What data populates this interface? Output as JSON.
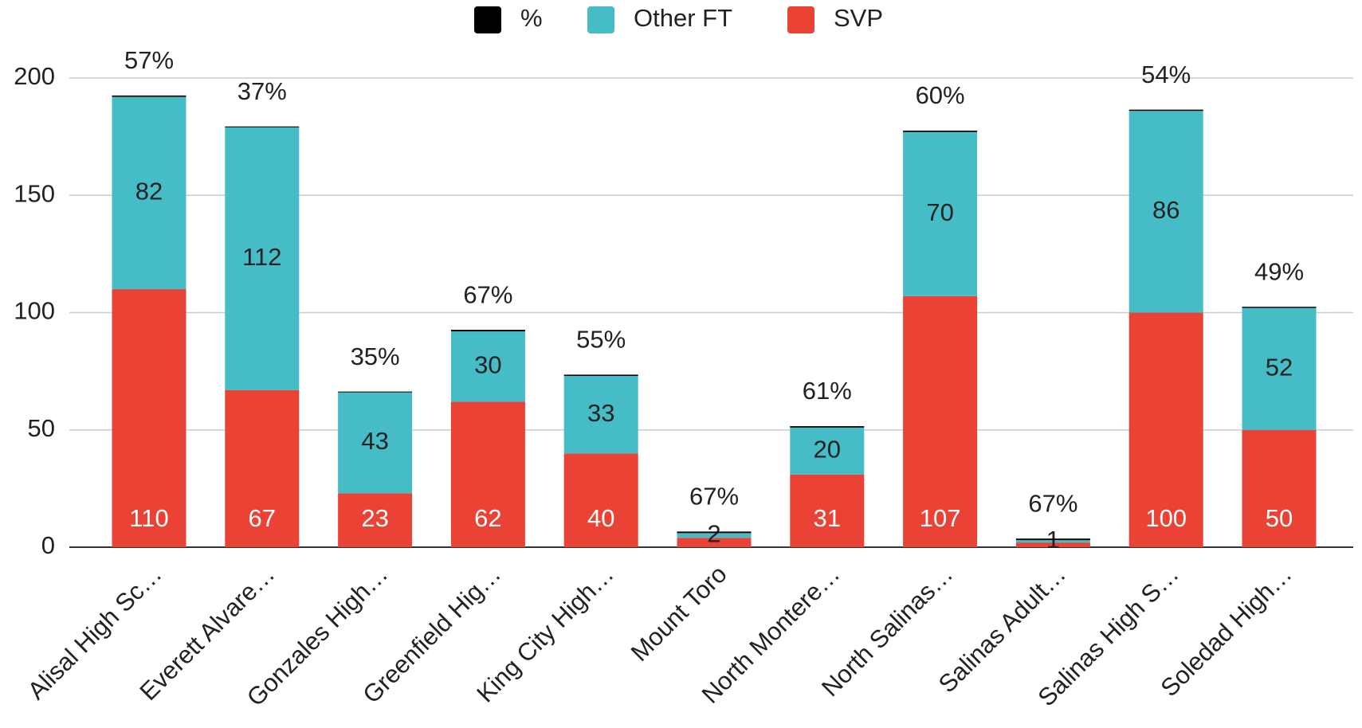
{
  "chart_data": {
    "type": "stacked_bar",
    "categories": [
      "Alisal High Sc…",
      "Everett Alvare…",
      "Gonzales High…",
      "Greenfield Hig…",
      "King City High…",
      "Mount Toro",
      "North Montere…",
      "North Salinas…",
      "Salinas Adult…",
      "Salinas High S…",
      "Soledad High…"
    ],
    "series": [
      {
        "name": "%",
        "color": "#000000",
        "values": [
          0.57,
          0.37,
          0.35,
          0.67,
          0.55,
          0.67,
          0.61,
          0.6,
          0.67,
          0.54,
          0.49
        ],
        "value_labels": [
          "57%",
          "37%",
          "35%",
          "67%",
          "55%",
          "67%",
          "61%",
          "60%",
          "67%",
          "54%",
          "49%"
        ]
      },
      {
        "name": "Other FT",
        "color": "#46bdc6",
        "values": [
          82,
          112,
          43,
          30,
          33,
          2,
          20,
          70,
          1,
          86,
          52
        ]
      },
      {
        "name": "SVP",
        "color": "#ea4335",
        "values": [
          110,
          67,
          23,
          62,
          40,
          4,
          31,
          107,
          2,
          100,
          50
        ]
      }
    ],
    "ylim": [
      0,
      200
    ],
    "yticks": [
      0,
      50,
      100,
      150,
      200
    ],
    "grid": true,
    "legend": "top"
  }
}
